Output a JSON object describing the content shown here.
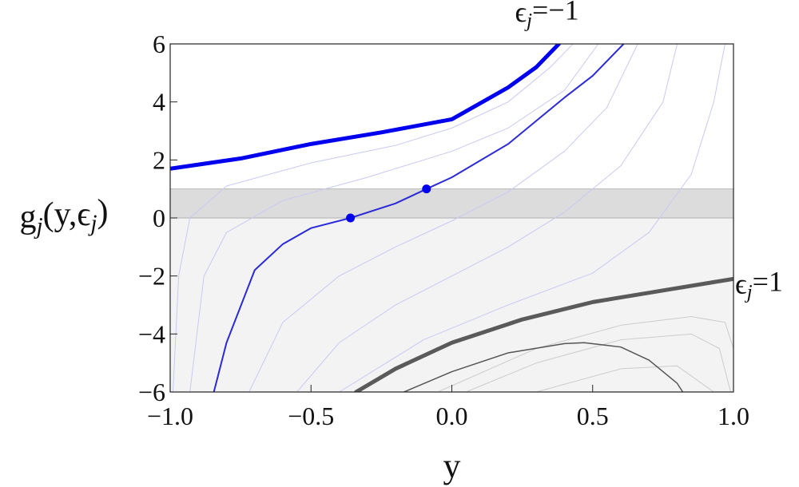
{
  "chart_data": {
    "type": "line",
    "xlabel": "y",
    "ylabel": [
      {
        "text": "g"
      },
      {
        "text": "j",
        "sub": true
      },
      {
        "text": "(y,ϵ"
      },
      {
        "text": "j",
        "sub": true
      },
      {
        "text": ")"
      }
    ],
    "xlim": [
      -1,
      1
    ],
    "ylim": [
      -6,
      6
    ],
    "xticks": [
      {
        "value": -1,
        "label": "−1.0"
      },
      {
        "value": -0.5,
        "label": "−0.5"
      },
      {
        "value": 0,
        "label": "0.0"
      },
      {
        "value": 0.5,
        "label": "0.5"
      },
      {
        "value": 1,
        "label": "1.0"
      }
    ],
    "yticks": [
      {
        "value": -6,
        "label": "−6"
      },
      {
        "value": -4,
        "label": "−4"
      },
      {
        "value": -2,
        "label": "−2"
      },
      0,
      2,
      4,
      6
    ],
    "bands": [
      {
        "from": -6,
        "to": 0,
        "color": "#f3f3f3"
      },
      {
        "from": 0,
        "to": 1,
        "color": "#dcdcdc"
      }
    ],
    "series": [
      {
        "color": "#c8c8f5",
        "width": 1,
        "x": [
          -0.99,
          -0.97,
          -0.93,
          -0.8,
          -0.5,
          -0.2,
          0,
          0.2,
          0.35,
          0.43
        ],
        "values": [
          -6,
          -2,
          0,
          1.1,
          1.9,
          2.5,
          3.1,
          4,
          5.2,
          6
        ]
      },
      {
        "color": "#c8c8f5",
        "width": 1,
        "x": [
          -0.93,
          -0.88,
          -0.8,
          -0.6,
          -0.3,
          0,
          0.2,
          0.4,
          0.52
        ],
        "values": [
          -6,
          -2,
          -0.5,
          0.6,
          1.4,
          2.3,
          3.1,
          4.4,
          6
        ]
      },
      {
        "color": "#c8c8f5",
        "width": 1,
        "x": [
          -0.72,
          -0.6,
          -0.4,
          -0.2,
          0,
          0.2,
          0.4,
          0.55,
          0.66
        ],
        "values": [
          -6,
          -3.6,
          -2,
          -1,
          -0.1,
          0.9,
          2.3,
          3.8,
          6
        ]
      },
      {
        "color": "#c8c8f5",
        "width": 1,
        "x": [
          -0.55,
          -0.4,
          -0.2,
          0,
          0.2,
          0.4,
          0.6,
          0.75,
          0.8
        ],
        "values": [
          -6,
          -4.3,
          -3,
          -2,
          -1,
          0.2,
          1.8,
          4,
          6
        ]
      },
      {
        "color": "#c8c8f5",
        "width": 1,
        "x": [
          -0.4,
          -0.1,
          0.2,
          0.5,
          0.7,
          0.85,
          0.93,
          0.97
        ],
        "values": [
          -6,
          -4.2,
          -3,
          -1.9,
          -0.5,
          1.5,
          4,
          6
        ]
      },
      {
        "color": "#cccccc",
        "width": 1,
        "x": [
          -0.05,
          0.3,
          0.6,
          0.85,
          0.97,
          1
        ],
        "values": [
          -6,
          -4.5,
          -3.7,
          -3.4,
          -3.6,
          -4.5
        ]
      },
      {
        "color": "#cccccc",
        "width": 1,
        "x": [
          0.05,
          0.3,
          0.6,
          0.85,
          0.95,
          0.99
        ],
        "values": [
          -6,
          -5,
          -4.2,
          -4,
          -4.5,
          -6
        ]
      },
      {
        "color": "#cccccc",
        "width": 1,
        "x": [
          0.3,
          0.6,
          0.8,
          0.93
        ],
        "values": [
          -6,
          -5.2,
          -5.1,
          -6
        ]
      },
      {
        "color": "#0000ee",
        "width": 5,
        "x": [
          -1,
          -0.75,
          -0.5,
          -0.25,
          0,
          0.2,
          0.3,
          0.38
        ],
        "values": [
          1.7,
          2.05,
          2.55,
          2.95,
          3.4,
          4.5,
          5.2,
          6
        ]
      },
      {
        "color": "#2a2ad8",
        "width": 2,
        "x": [
          -0.845,
          -0.8,
          -0.7,
          -0.6,
          -0.5,
          -0.36,
          -0.2,
          -0.09,
          0,
          0.2,
          0.4,
          0.5,
          0.61
        ],
        "values": [
          -6,
          -4.3,
          -1.8,
          -0.9,
          -0.35,
          0,
          0.5,
          1,
          1.4,
          2.55,
          4.15,
          4.9,
          6
        ]
      },
      {
        "color": "#5a5a5a",
        "width": 5,
        "x": [
          -0.34,
          -0.2,
          0,
          0.25,
          0.5,
          0.75,
          1
        ],
        "values": [
          -6,
          -5.2,
          -4.3,
          -3.5,
          -2.9,
          -2.5,
          -2.1
        ]
      },
      {
        "color": "#555555",
        "width": 1.5,
        "x": [
          -0.17,
          0,
          0.2,
          0.4,
          0.47,
          0.6,
          0.7,
          0.8,
          0.82
        ],
        "values": [
          -6,
          -5.3,
          -4.65,
          -4.33,
          -4.3,
          -4.45,
          -4.9,
          -5.7,
          -6
        ]
      }
    ],
    "points": {
      "color": "#0000ee",
      "x": [
        -0.36,
        -0.09
      ],
      "values": [
        0,
        1
      ]
    },
    "annotations": [
      {
        "x": 0.38,
        "y": 6,
        "parts": [
          {
            "text": "ϵ"
          },
          {
            "text": "j",
            "sub": true
          },
          {
            "text": "=−1"
          }
        ]
      },
      {
        "x": 1,
        "y": -2.1,
        "parts": [
          {
            "text": "ϵ"
          },
          {
            "text": "j",
            "sub": true
          },
          {
            "text": "=1"
          }
        ]
      }
    ]
  }
}
